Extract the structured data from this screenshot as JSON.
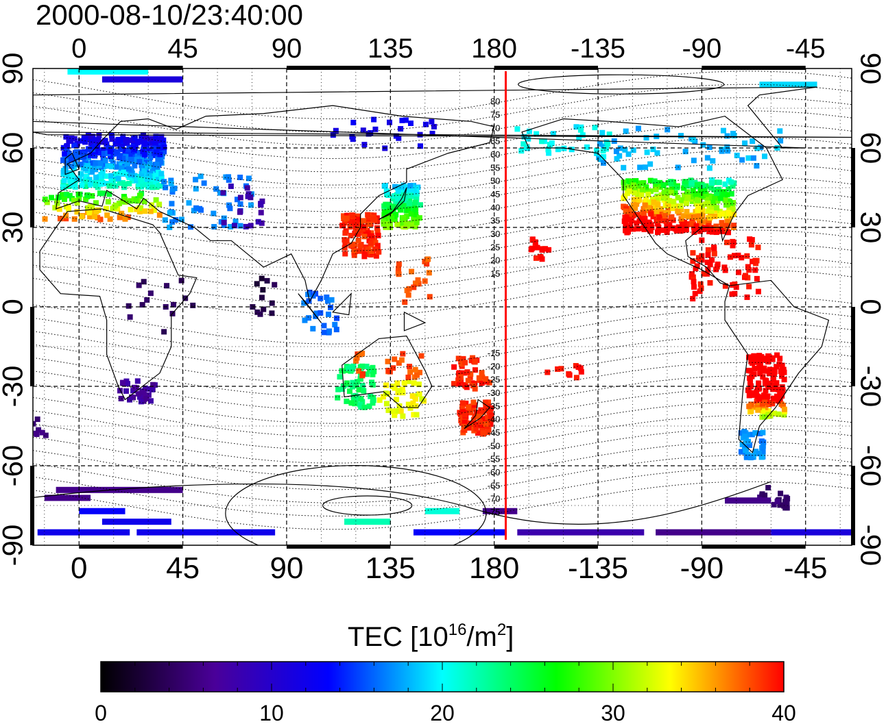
{
  "map": {
    "timestamp": "2000-08-10/23:40:00",
    "lon_ticks": [
      "0",
      "45",
      "90",
      "135",
      "180",
      "-135",
      "-90",
      "-45"
    ],
    "lat_ticks": [
      "90",
      "60",
      "30",
      "0",
      "-30",
      "-60",
      "-90"
    ],
    "contour_labels": [
      "80",
      "75",
      "70",
      "65",
      "60",
      "55",
      "50",
      "45",
      "40",
      "35",
      "30",
      "25",
      "20",
      "15",
      "-15",
      "-20",
      "-25",
      "-30",
      "-35",
      "-40",
      "-45",
      "-50",
      "-55",
      "-60",
      "-65",
      "-70",
      "-75"
    ],
    "lon_range_deg": [
      -20,
      335
    ],
    "lat_range_deg": [
      -90,
      90
    ],
    "terminator_longitude": "185",
    "terminator_color": "#ff0000"
  },
  "colorbar": {
    "label_main": "TEC  [10",
    "label_exp1": "16",
    "label_mid": "/m",
    "label_exp2": "2",
    "label_end": "]",
    "ticks": [
      "0",
      "10",
      "20",
      "30",
      "40"
    ],
    "range": [
      0,
      40
    ],
    "colormap": [
      "#000000",
      "#4a0099",
      "#0000ff",
      "#00ffff",
      "#00ff00",
      "#ffff00",
      "#ff0000"
    ]
  }
}
